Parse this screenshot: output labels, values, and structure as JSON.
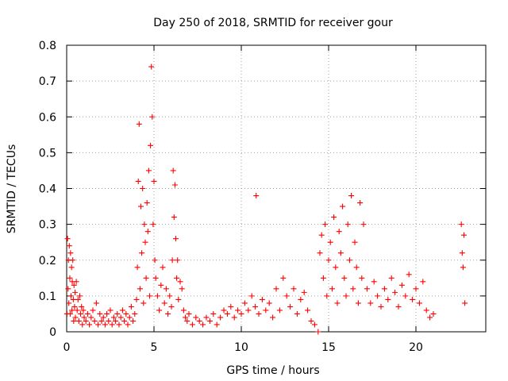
{
  "chart_data": {
    "type": "scatter",
    "title": "Day 250 of 2018, SRMTID for receiver gour",
    "xlabel": "GPS time / hours",
    "ylabel": "SRMTID / TECUs",
    "xlim": [
      0,
      24
    ],
    "ylim": [
      0,
      0.8
    ],
    "xticks": [
      0,
      5,
      10,
      15,
      20
    ],
    "xtick_labels": [
      "0",
      "5",
      "10",
      "15",
      "20"
    ],
    "yticks": [
      0,
      0.1,
      0.2,
      0.3,
      0.4,
      0.5,
      0.6,
      0.7,
      0.8
    ],
    "ytick_labels": [
      "0",
      "0.1",
      "0.2",
      "0.3",
      "0.4",
      "0.5",
      "0.6",
      "0.7",
      "0.8"
    ],
    "grid": true,
    "marker": "+",
    "color": "#ff0000",
    "series": [
      {
        "name": "SRMTID",
        "x": [
          0.02,
          0.05,
          0.08,
          0.1,
          0.12,
          0.15,
          0.18,
          0.2,
          0.22,
          0.25,
          0.28,
          0.3,
          0.32,
          0.35,
          0.38,
          0.4,
          0.42,
          0.45,
          0.48,
          0.5,
          0.55,
          0.6,
          0.65,
          0.7,
          0.75,
          0.8,
          0.85,
          0.9,
          0.95,
          1.0,
          1.1,
          1.2,
          1.3,
          1.4,
          1.5,
          1.6,
          1.7,
          1.8,
          1.9,
          2.0,
          2.1,
          2.2,
          2.3,
          2.4,
          2.5,
          2.6,
          2.7,
          2.8,
          2.9,
          3.0,
          3.1,
          3.2,
          3.3,
          3.4,
          3.5,
          3.6,
          3.7,
          3.8,
          3.9,
          4.0,
          4.05,
          4.1,
          4.15,
          4.2,
          4.25,
          4.3,
          4.35,
          4.4,
          4.45,
          4.5,
          4.55,
          4.6,
          4.65,
          4.7,
          4.75,
          4.8,
          4.85,
          4.9,
          4.95,
          5.0,
          5.05,
          5.1,
          5.2,
          5.3,
          5.4,
          5.5,
          5.6,
          5.7,
          5.8,
          5.9,
          6.0,
          6.05,
          6.1,
          6.15,
          6.2,
          6.25,
          6.3,
          6.35,
          6.4,
          6.5,
          6.6,
          6.7,
          6.8,
          6.9,
          7.0,
          7.2,
          7.4,
          7.6,
          7.8,
          8.0,
          8.2,
          8.4,
          8.6,
          8.8,
          9.0,
          9.2,
          9.4,
          9.6,
          9.8,
          10.0,
          10.2,
          10.4,
          10.6,
          10.8,
          10.85,
          11.0,
          11.2,
          11.4,
          11.6,
          11.8,
          12.0,
          12.2,
          12.4,
          12.6,
          12.8,
          13.0,
          13.2,
          13.4,
          13.6,
          13.8,
          14.0,
          14.2,
          14.4,
          14.5,
          14.6,
          14.7,
          14.8,
          14.9,
          15.0,
          15.1,
          15.2,
          15.3,
          15.4,
          15.5,
          15.6,
          15.7,
          15.8,
          15.9,
          16.0,
          16.1,
          16.2,
          16.3,
          16.4,
          16.5,
          16.6,
          16.7,
          16.8,
          16.9,
          17.0,
          17.2,
          17.4,
          17.6,
          17.8,
          18.0,
          18.2,
          18.4,
          18.6,
          18.8,
          19.0,
          19.2,
          19.4,
          19.6,
          19.8,
          20.0,
          20.2,
          20.4,
          20.6,
          20.8,
          21.0,
          22.6,
          22.65,
          22.7,
          22.75,
          22.8
        ],
        "y": [
          0.05,
          0.26,
          0.12,
          0.2,
          0.08,
          0.24,
          0.15,
          0.05,
          0.22,
          0.1,
          0.18,
          0.06,
          0.14,
          0.2,
          0.09,
          0.03,
          0.13,
          0.07,
          0.11,
          0.04,
          0.14,
          0.06,
          0.09,
          0.03,
          0.1,
          0.05,
          0.07,
          0.02,
          0.06,
          0.04,
          0.03,
          0.05,
          0.02,
          0.04,
          0.06,
          0.03,
          0.08,
          0.02,
          0.05,
          0.03,
          0.04,
          0.02,
          0.05,
          0.03,
          0.06,
          0.02,
          0.04,
          0.03,
          0.05,
          0.02,
          0.04,
          0.06,
          0.03,
          0.05,
          0.02,
          0.04,
          0.07,
          0.03,
          0.05,
          0.09,
          0.18,
          0.42,
          0.58,
          0.12,
          0.35,
          0.22,
          0.4,
          0.08,
          0.3,
          0.25,
          0.15,
          0.36,
          0.28,
          0.45,
          0.1,
          0.52,
          0.74,
          0.6,
          0.3,
          0.42,
          0.2,
          0.15,
          0.1,
          0.06,
          0.13,
          0.18,
          0.08,
          0.12,
          0.05,
          0.1,
          0.07,
          0.2,
          0.45,
          0.32,
          0.41,
          0.26,
          0.15,
          0.2,
          0.09,
          0.14,
          0.12,
          0.06,
          0.04,
          0.03,
          0.05,
          0.02,
          0.04,
          0.03,
          0.02,
          0.04,
          0.03,
          0.05,
          0.02,
          0.04,
          0.06,
          0.05,
          0.07,
          0.04,
          0.06,
          0.05,
          0.08,
          0.06,
          0.1,
          0.07,
          0.38,
          0.05,
          0.09,
          0.06,
          0.08,
          0.04,
          0.12,
          0.06,
          0.15,
          0.1,
          0.07,
          0.12,
          0.05,
          0.09,
          0.11,
          0.06,
          0.03,
          0.02,
          0.0,
          0.22,
          0.27,
          0.15,
          0.3,
          0.1,
          0.2,
          0.25,
          0.12,
          0.32,
          0.18,
          0.08,
          0.28,
          0.22,
          0.35,
          0.15,
          0.1,
          0.3,
          0.2,
          0.38,
          0.12,
          0.25,
          0.18,
          0.08,
          0.36,
          0.15,
          0.3,
          0.12,
          0.08,
          0.14,
          0.1,
          0.07,
          0.12,
          0.09,
          0.15,
          0.11,
          0.07,
          0.13,
          0.1,
          0.16,
          0.09,
          0.12,
          0.08,
          0.14,
          0.06,
          0.04,
          0.05,
          0.3,
          0.22,
          0.18,
          0.27,
          0.08
        ]
      }
    ]
  }
}
